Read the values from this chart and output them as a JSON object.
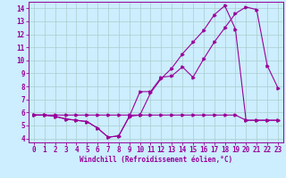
{
  "xlabel": "Windchill (Refroidissement éolien,°C)",
  "background_color": "#cceeff",
  "grid_color": "#aacccc",
  "line_color": "#990099",
  "xlim": [
    -0.5,
    23.5
  ],
  "ylim": [
    3.7,
    14.5
  ],
  "xticks": [
    0,
    1,
    2,
    3,
    4,
    5,
    6,
    7,
    8,
    9,
    10,
    11,
    12,
    13,
    14,
    15,
    16,
    17,
    18,
    19,
    20,
    21,
    22,
    23
  ],
  "yticks": [
    4,
    5,
    6,
    7,
    8,
    9,
    10,
    11,
    12,
    13,
    14
  ],
  "series1_x": [
    0,
    1,
    2,
    3,
    4,
    5,
    6,
    7,
    8,
    9,
    10,
    11,
    12,
    13,
    14,
    15,
    16,
    17,
    18,
    19,
    20,
    21,
    22,
    23
  ],
  "series1_y": [
    5.8,
    5.8,
    5.7,
    5.5,
    5.4,
    5.3,
    4.8,
    4.1,
    4.2,
    5.7,
    7.6,
    7.6,
    8.7,
    8.8,
    9.5,
    8.7,
    10.1,
    11.4,
    12.5,
    13.6,
    14.1,
    13.9,
    9.6,
    7.9
  ],
  "series2_x": [
    0,
    1,
    2,
    3,
    4,
    5,
    6,
    7,
    8,
    9,
    10,
    11,
    12,
    13,
    14,
    15,
    16,
    17,
    18,
    19,
    20,
    21,
    22,
    23
  ],
  "series2_y": [
    5.8,
    5.8,
    5.7,
    5.5,
    5.4,
    5.3,
    4.8,
    4.1,
    4.2,
    5.7,
    5.8,
    7.5,
    8.6,
    9.4,
    10.5,
    11.4,
    12.3,
    13.5,
    14.2,
    12.4,
    5.4,
    5.4,
    5.4,
    5.4
  ],
  "series3_x": [
    0,
    1,
    2,
    3,
    4,
    5,
    6,
    7,
    8,
    9,
    10,
    11,
    12,
    13,
    14,
    15,
    16,
    17,
    18,
    19,
    20,
    21,
    22,
    23
  ],
  "series3_y": [
    5.8,
    5.8,
    5.8,
    5.8,
    5.8,
    5.8,
    5.8,
    5.8,
    5.8,
    5.8,
    5.8,
    5.8,
    5.8,
    5.8,
    5.8,
    5.8,
    5.8,
    5.8,
    5.8,
    5.8,
    5.4,
    5.4,
    5.4,
    5.4
  ]
}
